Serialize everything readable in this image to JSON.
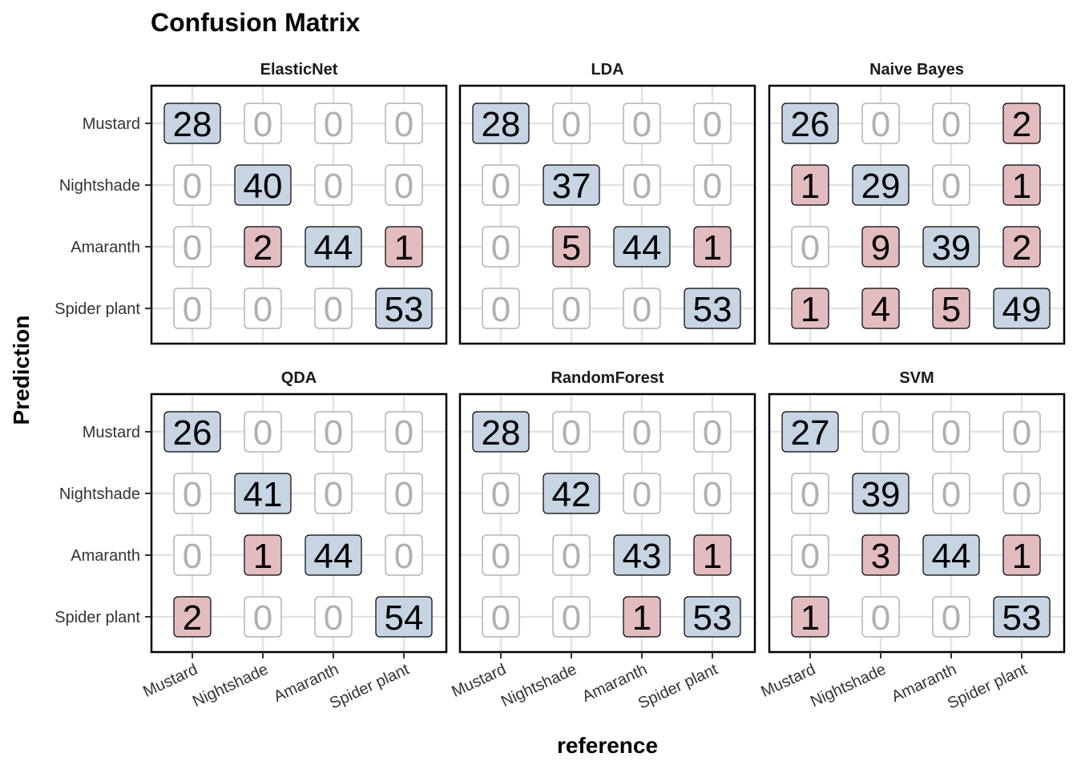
{
  "chart_data": {
    "type": "heatmap",
    "title": "Confusion Matrix",
    "xlabel": "reference",
    "ylabel": "Prediction",
    "classes": [
      "Mustard",
      "Nightshade",
      "Amaranth",
      "Spider plant"
    ],
    "x_tick_labels": [
      "Mustard",
      "Nightshade",
      "Amaranth",
      "Spider plant"
    ],
    "y_tick_labels": [
      "Mustard",
      "Nightshade",
      "Amaranth",
      "Spider plant"
    ],
    "grid": true,
    "colors": {
      "correct": "#c6d4e4",
      "incorrect": "#e3bcbf",
      "zero_border": "#b3b3b3",
      "zero_text": "#b0b0b0",
      "label_text": "#000000"
    },
    "panels": [
      {
        "name": "ElasticNet",
        "matrix": [
          [
            28,
            0,
            0,
            0
          ],
          [
            0,
            40,
            0,
            0
          ],
          [
            0,
            2,
            44,
            1
          ],
          [
            0,
            0,
            0,
            53
          ]
        ]
      },
      {
        "name": "LDA",
        "matrix": [
          [
            28,
            0,
            0,
            0
          ],
          [
            0,
            37,
            0,
            0
          ],
          [
            0,
            5,
            44,
            1
          ],
          [
            0,
            0,
            0,
            53
          ]
        ]
      },
      {
        "name": "Naive Bayes",
        "matrix": [
          [
            26,
            0,
            0,
            2
          ],
          [
            1,
            29,
            0,
            1
          ],
          [
            0,
            9,
            39,
            2
          ],
          [
            1,
            4,
            5,
            49
          ]
        ]
      },
      {
        "name": "QDA",
        "matrix": [
          [
            26,
            0,
            0,
            0
          ],
          [
            0,
            41,
            0,
            0
          ],
          [
            0,
            1,
            44,
            0
          ],
          [
            2,
            0,
            0,
            54
          ]
        ]
      },
      {
        "name": "RandomForest",
        "matrix": [
          [
            28,
            0,
            0,
            0
          ],
          [
            0,
            42,
            0,
            0
          ],
          [
            0,
            0,
            43,
            1
          ],
          [
            0,
            0,
            1,
            53
          ]
        ]
      },
      {
        "name": "SVM",
        "matrix": [
          [
            27,
            0,
            0,
            0
          ],
          [
            0,
            39,
            0,
            0
          ],
          [
            0,
            3,
            44,
            1
          ],
          [
            1,
            0,
            0,
            53
          ]
        ]
      }
    ]
  }
}
